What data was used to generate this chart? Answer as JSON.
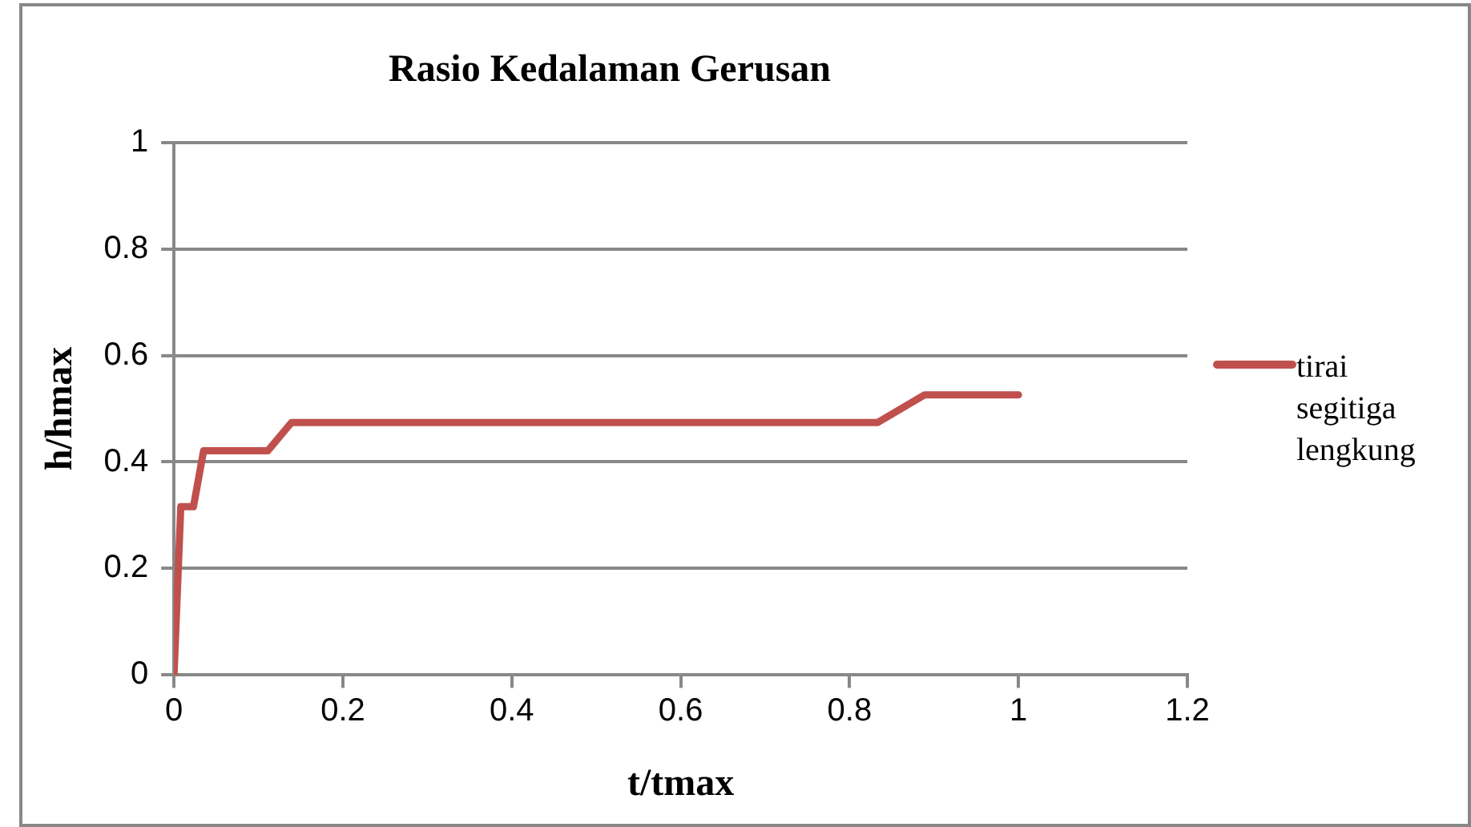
{
  "chart_data": {
    "type": "line",
    "title": "Rasio Kedalaman Gerusan",
    "xlabel": "t/tmax",
    "ylabel": "h/hmax",
    "series": [
      {
        "name": "tirai segitiga lengkung",
        "color": "#c0504d",
        "x": [
          0,
          0.008,
          0.023,
          0.035,
          0.111,
          0.139,
          0.833,
          0.889,
          1
        ],
        "values": [
          0,
          0.316,
          0.316,
          0.421,
          0.421,
          0.474,
          0.474,
          0.526,
          0.526
        ]
      }
    ],
    "xlim": [
      0,
      1.2
    ],
    "xticks": [
      0,
      0.2,
      0.4,
      0.6,
      0.8,
      1,
      1.2
    ],
    "ylim": [
      0,
      1
    ],
    "yticks": [
      0,
      0.2,
      0.4,
      0.6,
      0.8,
      1
    ],
    "grid": "y",
    "legend": "right",
    "marker": "none",
    "line_style": "solid"
  }
}
